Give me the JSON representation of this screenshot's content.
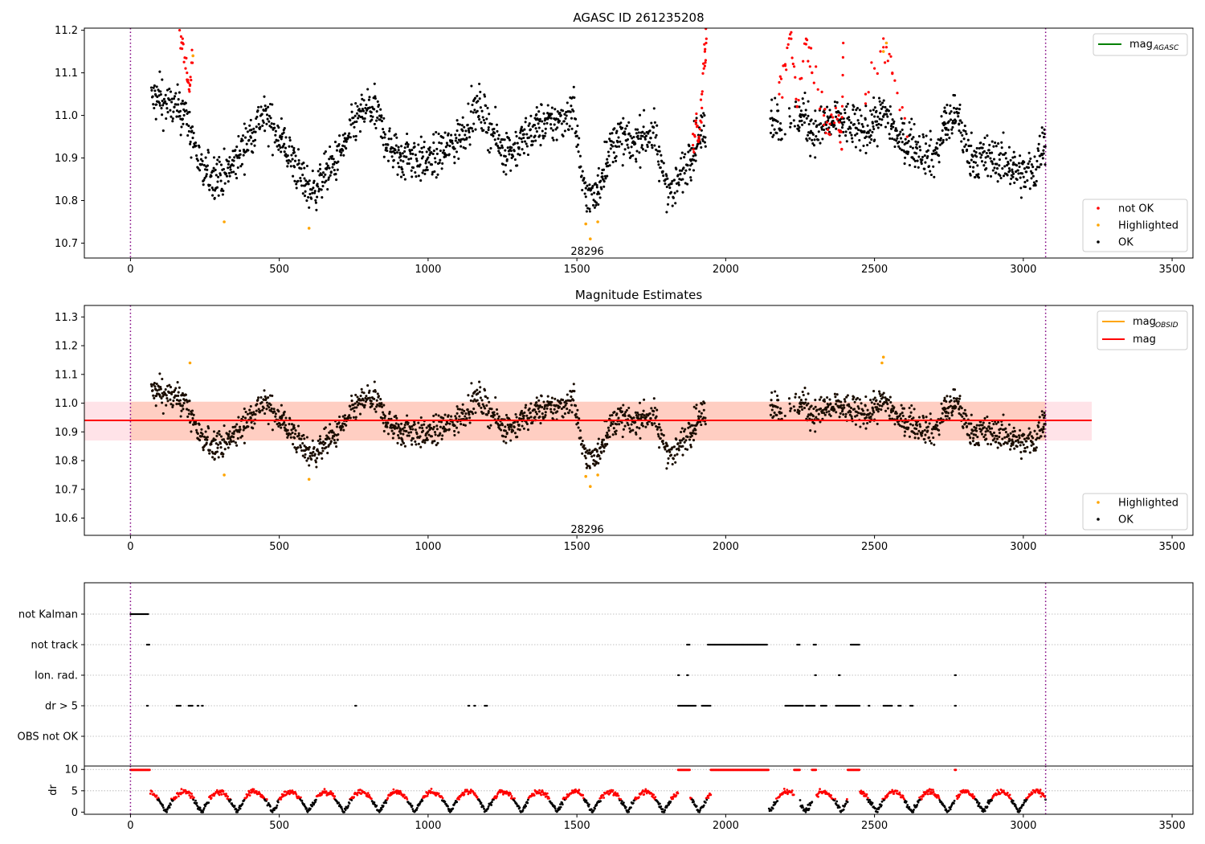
{
  "chart_data": [
    {
      "type": "scatter",
      "title": "AGASC ID 261235208",
      "xlim": [
        -155,
        3570
      ],
      "ylim": [
        10.665,
        11.205
      ],
      "xticks": [
        0,
        500,
        1000,
        1500,
        2000,
        2500,
        3000,
        3500
      ],
      "yticks": [
        10.7,
        10.8,
        10.9,
        11.0,
        11.1,
        11.2
      ],
      "vlines": [
        0,
        3075
      ],
      "annotation": {
        "text": "28296",
        "x": 1535,
        "y": 10.68
      },
      "legend_lines": [
        {
          "label": "mag",
          "sub": "AGASC",
          "color": "#008000"
        }
      ],
      "legend_points": [
        {
          "label": "not OK",
          "color": "#ff0000"
        },
        {
          "label": "Highlighted",
          "color": "#ffa500"
        },
        {
          "label": "OK",
          "color": "#000000"
        }
      ],
      "legend_lines_placement": "top-right",
      "legend_points_placement": "bottom-right",
      "trend": [
        [
          80,
          11.04
        ],
        [
          140,
          11.02
        ],
        [
          180,
          11.01
        ],
        [
          210,
          10.95
        ],
        [
          240,
          10.86
        ],
        [
          280,
          10.86
        ],
        [
          320,
          10.86
        ],
        [
          360,
          10.9
        ],
        [
          400,
          10.95
        ],
        [
          440,
          11.0
        ],
        [
          470,
          10.98
        ],
        [
          500,
          10.95
        ],
        [
          540,
          10.9
        ],
        [
          570,
          10.86
        ],
        [
          610,
          10.82
        ],
        [
          640,
          10.85
        ],
        [
          680,
          10.88
        ],
        [
          720,
          10.93
        ],
        [
          760,
          10.99
        ],
        [
          800,
          11.02
        ],
        [
          830,
          11.0
        ],
        [
          860,
          10.94
        ],
        [
          900,
          10.9
        ],
        [
          940,
          10.91
        ],
        [
          980,
          10.89
        ],
        [
          1020,
          10.9
        ],
        [
          1060,
          10.92
        ],
        [
          1100,
          10.94
        ],
        [
          1130,
          10.98
        ],
        [
          1170,
          11.02
        ],
        [
          1210,
          10.97
        ],
        [
          1250,
          10.92
        ],
        [
          1290,
          10.92
        ],
        [
          1330,
          10.95
        ],
        [
          1370,
          10.98
        ],
        [
          1410,
          10.98
        ],
        [
          1450,
          10.99
        ],
        [
          1490,
          11.02
        ],
        [
          1520,
          10.83
        ],
        [
          1560,
          10.8
        ],
        [
          1600,
          10.9
        ],
        [
          1640,
          10.95
        ],
        [
          1680,
          10.93
        ],
        [
          1720,
          10.95
        ],
        [
          1760,
          10.96
        ],
        [
          1780,
          10.88
        ],
        [
          1820,
          10.82
        ],
        [
          1850,
          10.86
        ],
        [
          1900,
          10.94
        ],
        [
          1930,
          10.97
        ],
        [
          2160,
          11.0
        ],
        [
          2200,
          10.97
        ],
        [
          2260,
          11.0
        ],
        [
          2300,
          10.96
        ],
        [
          2340,
          10.98
        ],
        [
          2380,
          10.99
        ],
        [
          2460,
          10.96
        ],
        [
          2500,
          10.98
        ],
        [
          2540,
          11.01
        ],
        [
          2580,
          10.94
        ],
        [
          2640,
          10.93
        ],
        [
          2700,
          10.9
        ],
        [
          2740,
          10.98
        ],
        [
          2780,
          11.0
        ],
        [
          2820,
          10.9
        ],
        [
          2880,
          10.9
        ],
        [
          2940,
          10.89
        ],
        [
          3000,
          10.86
        ],
        [
          3040,
          10.87
        ],
        [
          3070,
          10.95
        ]
      ],
      "gaps": [
        [
          1932,
          2150
        ]
      ],
      "red_clusters": [
        [
          [
            165,
            11.2
          ],
          [
            175,
            11.17
          ],
          [
            190,
            11.1
          ],
          [
            200,
            11.07
          ],
          [
            210,
            11.14
          ]
        ],
        [
          [
            1890,
            10.93
          ],
          [
            1900,
            10.98
          ],
          [
            1910,
            10.95
          ],
          [
            1920,
            11.05
          ],
          [
            1930,
            11.15
          ],
          [
            1935,
            11.18
          ]
        ],
        [
          [
            2180,
            11.05
          ],
          [
            2200,
            11.12
          ],
          [
            2220,
            11.18
          ],
          [
            2240,
            11.02
          ],
          [
            2270,
            11.18
          ],
          [
            2290,
            11.1
          ],
          [
            2330,
            11.0
          ],
          [
            2350,
            10.98
          ],
          [
            2380,
            11.0
          ],
          [
            2390,
            10.92
          ],
          [
            2395,
            11.17
          ]
        ],
        [
          [
            2470,
            11.05
          ],
          [
            2530,
            11.16
          ],
          [
            2560,
            11.1
          ],
          [
            2610,
            10.95
          ]
        ]
      ],
      "highlighted": [
        [
          210,
          11.14
        ],
        [
          315,
          10.75
        ],
        [
          600,
          10.735
        ],
        [
          1530,
          10.745
        ],
        [
          1545,
          10.71
        ],
        [
          1570,
          10.75
        ],
        [
          2530,
          11.15
        ],
        [
          2540,
          11.17
        ]
      ]
    },
    {
      "type": "scatter",
      "title": "Magnitude Estimates",
      "xlim": [
        -155,
        3570
      ],
      "ylim": [
        10.54,
        11.34
      ],
      "xticks": [
        0,
        500,
        1000,
        1500,
        2000,
        2500,
        3000,
        3500
      ],
      "yticks": [
        10.6,
        10.7,
        10.8,
        10.9,
        11.0,
        11.1,
        11.2,
        11.3
      ],
      "vlines": [
        0,
        3075
      ],
      "annotation": {
        "text": "28296",
        "x": 1535,
        "y": 10.56
      },
      "mag_line": 10.94,
      "band_outer": [
        10.87,
        11.005
      ],
      "band_inner": [
        10.87,
        11.005
      ],
      "band_outer_x": [
        -155,
        3230
      ],
      "band_inner_x": [
        0,
        3075
      ],
      "legend_lines": [
        {
          "label": "mag",
          "sub": "OBSID",
          "color": "#ffa500"
        },
        {
          "label": "mag",
          "sub": "",
          "color": "#ff0000"
        }
      ],
      "legend_points": [
        {
          "label": "Highlighted",
          "color": "#ffa500"
        },
        {
          "label": "OK",
          "color": "#000000"
        }
      ],
      "legend_lines_placement": "top-right",
      "legend_points_placement": "bottom-right",
      "highlighted": [
        [
          200,
          11.14
        ],
        [
          315,
          10.75
        ],
        [
          600,
          10.735
        ],
        [
          1530,
          10.745
        ],
        [
          1545,
          10.71
        ],
        [
          1570,
          10.75
        ],
        [
          2525,
          11.14
        ],
        [
          2530,
          11.16
        ]
      ]
    },
    {
      "type": "scatter",
      "xlim": [
        -155,
        3570
      ],
      "xticks": [
        0,
        500,
        1000,
        1500,
        2000,
        2500,
        3000,
        3500
      ],
      "vlines": [
        0,
        3075
      ],
      "categories": [
        "not Kalman",
        "not track",
        "Ion. rad.",
        "dr > 5",
        "OBS not OK"
      ],
      "flags": {
        "not Kalman": [
          [
            0,
            60
          ]
        ],
        "not track": [
          [
            55,
            65
          ],
          [
            1870,
            1880
          ],
          [
            1940,
            2140
          ],
          [
            2240,
            2250
          ],
          [
            2295,
            2305
          ],
          [
            2420,
            2450
          ]
        ],
        "Ion. rad.": [
          [
            1840,
            1845
          ],
          [
            1870,
            1875
          ],
          [
            2300,
            2305
          ],
          [
            2380,
            2385
          ],
          [
            2770,
            2775
          ]
        ],
        "dr > 5": [
          [
            55,
            60
          ],
          [
            155,
            170
          ],
          [
            195,
            210
          ],
          [
            225,
            230
          ],
          [
            240,
            245
          ],
          [
            755,
            760
          ],
          [
            1135,
            1140
          ],
          [
            1155,
            1160
          ],
          [
            1190,
            1200
          ],
          [
            1840,
            1900
          ],
          [
            1920,
            1950
          ],
          [
            2200,
            2260
          ],
          [
            2270,
            2300
          ],
          [
            2320,
            2340
          ],
          [
            2370,
            2450
          ],
          [
            2480,
            2485
          ],
          [
            2530,
            2560
          ],
          [
            2580,
            2590
          ],
          [
            2620,
            2630
          ],
          [
            2770,
            2775
          ]
        ],
        "OBS not OK": []
      }
    },
    {
      "type": "scatter",
      "ylabel": "dr",
      "xlim": [
        -155,
        3570
      ],
      "ylim": [
        -0.5,
        10.8
      ],
      "xticks": [
        0,
        500,
        1000,
        1500,
        2000,
        2500,
        3000,
        3500
      ],
      "yticks": [
        0,
        5,
        10
      ],
      "vlines": [
        0,
        3075
      ],
      "saturated_ranges": [
        [
          0,
          65
        ],
        [
          1840,
          1880
        ],
        [
          1950,
          2145
        ],
        [
          2230,
          2250
        ],
        [
          2290,
          2305
        ],
        [
          2410,
          2450
        ],
        [
          2770,
          2775
        ]
      ]
    }
  ]
}
